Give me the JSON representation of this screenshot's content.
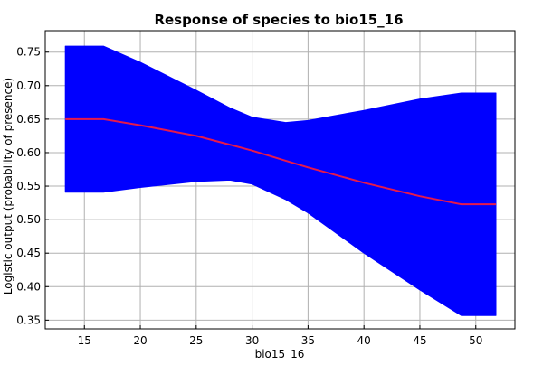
{
  "chart_data": {
    "type": "line",
    "title": "Response of species to bio15_16",
    "xlabel": "bio15_16",
    "ylabel": "Logistic output (probability of presence)",
    "xlim": [
      11.5,
      53.5
    ],
    "ylim": [
      0.337,
      0.782
    ],
    "grid": true,
    "x_ticks": [
      15,
      20,
      25,
      30,
      35,
      40,
      45,
      50
    ],
    "y_ticks": [
      0.35,
      0.4,
      0.45,
      0.5,
      0.55,
      0.6,
      0.65,
      0.7,
      0.75
    ],
    "x_tick_labels": [
      "15",
      "20",
      "25",
      "30",
      "35",
      "40",
      "45",
      "50"
    ],
    "y_tick_labels": [
      "0.35",
      "0.40",
      "0.45",
      "0.50",
      "0.55",
      "0.60",
      "0.65",
      "0.70",
      "0.75"
    ],
    "band_color": "#0000ff",
    "line_color": "#e6194b",
    "series": [
      {
        "x": [
          13.3,
          16.7,
          20,
          25,
          28,
          30,
          33,
          35,
          40,
          45,
          48.7,
          51.8
        ],
        "y": [
          0.65,
          0.65,
          0.641,
          0.625,
          0.612,
          0.603,
          0.588,
          0.578,
          0.555,
          0.535,
          0.523,
          0.523
        ],
        "upper": [
          0.759,
          0.759,
          0.735,
          0.693,
          0.667,
          0.653,
          0.645,
          0.648,
          0.663,
          0.68,
          0.689,
          0.689
        ],
        "lower": [
          0.541,
          0.541,
          0.548,
          0.557,
          0.559,
          0.553,
          0.53,
          0.51,
          0.45,
          0.395,
          0.357,
          0.357
        ]
      }
    ]
  }
}
